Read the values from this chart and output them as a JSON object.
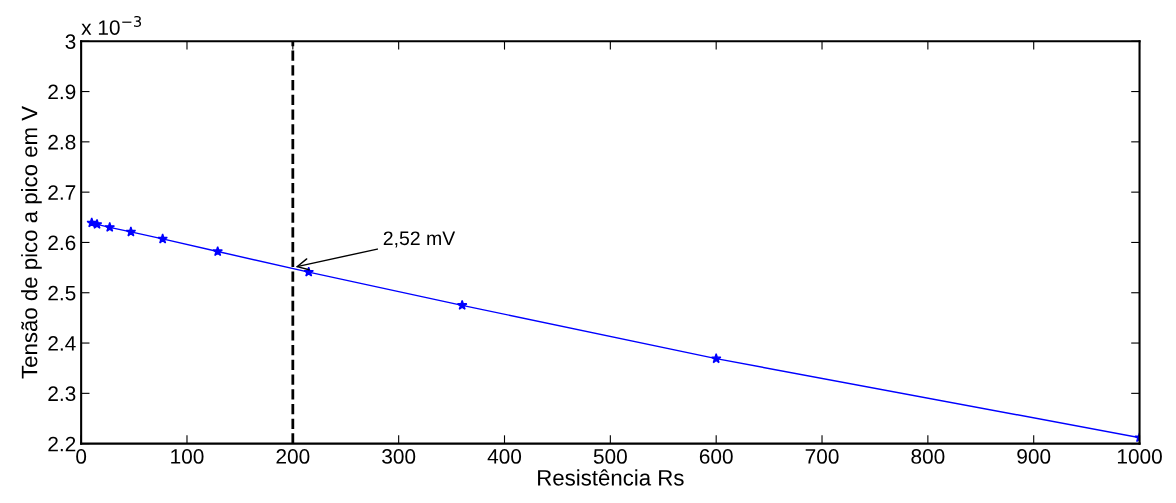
{
  "chart_data": {
    "type": "line",
    "xlabel": "Resistência Rs",
    "ylabel": "Tensão de pico a pico em V",
    "x": [
      10,
      15,
      27,
      47,
      77,
      129,
      215,
      360,
      600,
      1000
    ],
    "series": [
      {
        "color": "#0000ff",
        "values": [
          2.639,
          2.636,
          2.63,
          2.621,
          2.607,
          2.582,
          2.541,
          2.475,
          2.369,
          2.212
        ]
      }
    ],
    "marker": "star",
    "line_style": "solid",
    "grid": false,
    "legend": false,
    "xlim": [
      0,
      1000
    ],
    "xticks": [
      0,
      100,
      200,
      300,
      400,
      500,
      600,
      700,
      800,
      900,
      1000
    ],
    "ylim": [
      2.2,
      3.0
    ],
    "yticks": [
      2.2,
      2.3,
      2.4,
      2.5,
      2.6,
      2.7,
      2.8,
      2.9,
      {
        "value": 3.0,
        "label": "3"
      }
    ],
    "ref_lines": [
      {
        "axis": "x",
        "value": 200,
        "color": "#000000",
        "line_style": "dashed"
      }
    ],
    "annotations": [
      "x 10$^{−3}$",
      {
        "text": "2,52 mV",
        "x": 200,
        "y": 2.55
      }
    ]
  }
}
